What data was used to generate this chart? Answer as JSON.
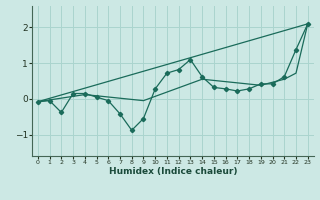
{
  "xlabel": "Humidex (Indice chaleur)",
  "bg_color": "#cce8e4",
  "grid_color": "#aad4ce",
  "line_color": "#1a6b5a",
  "xlim": [
    -0.5,
    23.5
  ],
  "ylim": [
    -1.6,
    2.6
  ],
  "yticks": [
    -1,
    0,
    1,
    2
  ],
  "xticks": [
    0,
    1,
    2,
    3,
    4,
    5,
    6,
    7,
    8,
    9,
    10,
    11,
    12,
    13,
    14,
    15,
    16,
    17,
    18,
    19,
    20,
    21,
    22,
    23
  ],
  "line1_x": [
    0,
    1,
    2,
    3,
    4,
    5,
    6,
    7,
    8,
    9,
    10,
    11,
    12,
    13,
    14,
    15,
    16,
    17,
    18,
    19,
    20,
    21,
    22,
    23
  ],
  "line1_y": [
    -0.08,
    -0.05,
    -0.38,
    0.15,
    0.15,
    0.05,
    -0.05,
    -0.42,
    -0.88,
    -0.55,
    0.28,
    0.72,
    0.82,
    1.1,
    0.62,
    0.32,
    0.28,
    0.22,
    0.28,
    0.42,
    0.42,
    0.62,
    1.38,
    2.1
  ],
  "line2_x": [
    0,
    23
  ],
  "line2_y": [
    -0.08,
    2.1
  ],
  "line3_x": [
    0,
    4,
    9,
    14,
    19,
    21,
    22,
    23
  ],
  "line3_y": [
    -0.08,
    0.12,
    -0.05,
    0.55,
    0.38,
    0.55,
    0.72,
    2.1
  ]
}
